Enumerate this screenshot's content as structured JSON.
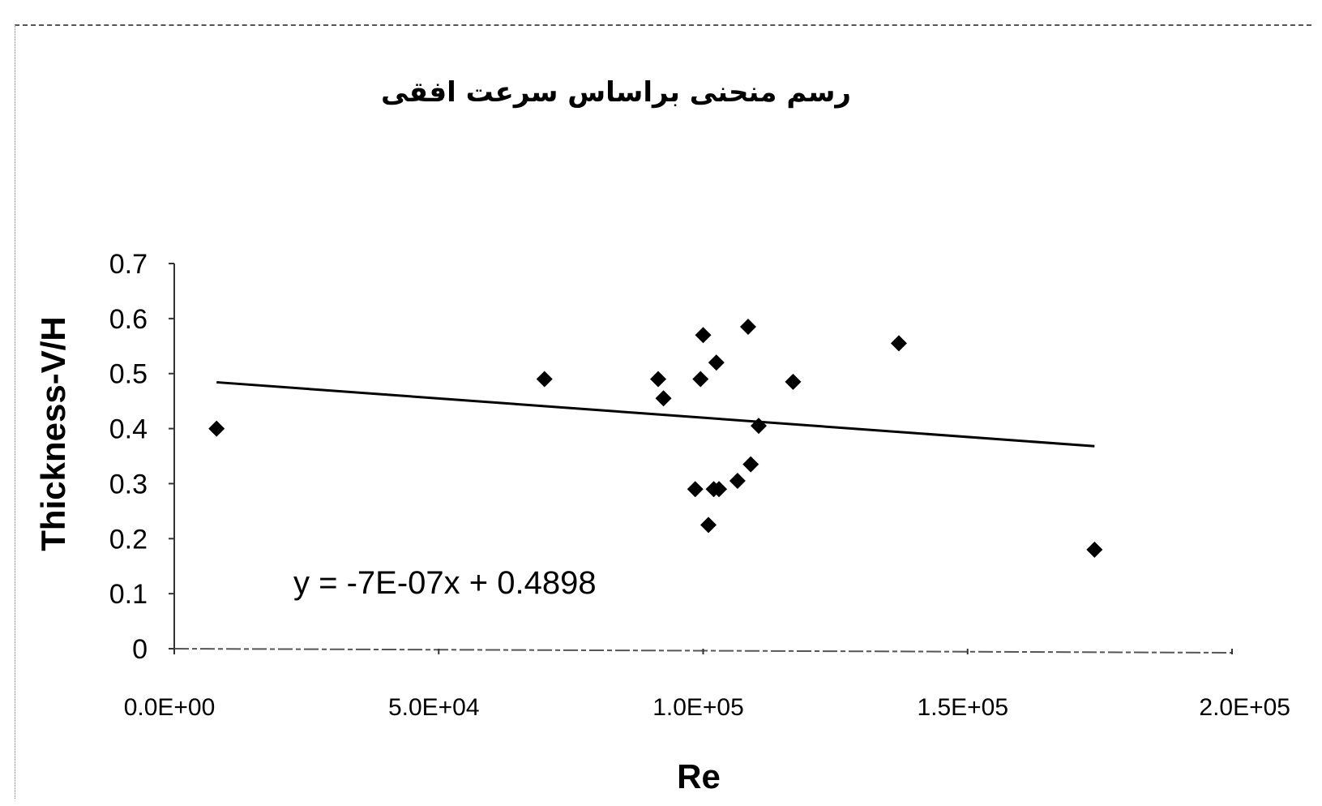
{
  "chart_data": {
    "type": "scatter",
    "title": "رسم منحنی براساس سرعت افقی",
    "xlabel": "Re",
    "ylabel": "Thickness-V/H",
    "xlim": [
      0,
      200000
    ],
    "ylim": [
      0,
      0.7
    ],
    "x_ticks": [
      "0.0E+00",
      "5.0E+04",
      "1.0E+05",
      "1.5E+05",
      "2.0E+05"
    ],
    "y_ticks": [
      "0",
      "0.1",
      "0.2",
      "0.3",
      "0.4",
      "0.5",
      "0.6",
      "0.7"
    ],
    "x_tick_values": [
      0,
      50000,
      100000,
      150000,
      200000
    ],
    "y_tick_values": [
      0,
      0.1,
      0.2,
      0.3,
      0.4,
      0.5,
      0.6,
      0.7
    ],
    "grid": false,
    "legend": "none",
    "marker": "diamond",
    "marker_color": "#000000",
    "points": [
      {
        "x": 8000,
        "y": 0.4
      },
      {
        "x": 70000,
        "y": 0.49
      },
      {
        "x": 91500,
        "y": 0.49
      },
      {
        "x": 92500,
        "y": 0.455
      },
      {
        "x": 98500,
        "y": 0.29
      },
      {
        "x": 99500,
        "y": 0.49
      },
      {
        "x": 100000,
        "y": 0.57
      },
      {
        "x": 101000,
        "y": 0.225
      },
      {
        "x": 102000,
        "y": 0.29
      },
      {
        "x": 102500,
        "y": 0.52
      },
      {
        "x": 103000,
        "y": 0.29
      },
      {
        "x": 106500,
        "y": 0.305
      },
      {
        "x": 108500,
        "y": 0.585
      },
      {
        "x": 109000,
        "y": 0.335
      },
      {
        "x": 110500,
        "y": 0.405
      },
      {
        "x": 117000,
        "y": 0.485
      },
      {
        "x": 137000,
        "y": 0.555
      },
      {
        "x": 174000,
        "y": 0.18
      }
    ],
    "trendline": {
      "x_start": 8000,
      "x_end": 174000,
      "slope": -7e-07,
      "intercept": 0.4898,
      "label": "y = -7E-07x + 0.4898"
    }
  }
}
